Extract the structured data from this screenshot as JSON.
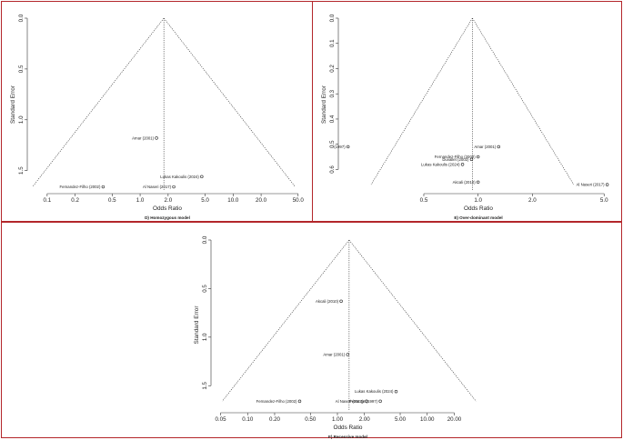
{
  "colors": {
    "border": "#b3262a",
    "ink": "#222222"
  },
  "chart_data": [
    {
      "id": "panel-d",
      "type": "scatter",
      "caption": "D) Homozygous model",
      "xlabel": "Odds Ratio",
      "ylabel": "Standard Error",
      "x_scale": "log",
      "xlim": [
        0.07,
        55
      ],
      "ylim": [
        1.7,
        0
      ],
      "x_ticks": [
        0.1,
        0.2,
        0.5,
        1.0,
        2.0,
        5.0,
        10.0,
        20.0,
        50.0
      ],
      "x_tick_labels": [
        "0.1",
        "0.2",
        "0.5",
        "1.0",
        "2.0",
        "5.0",
        "10.0",
        "20.0",
        "50.0"
      ],
      "y_ticks": [
        0,
        0.5,
        1.0,
        1.5
      ],
      "y_tick_labels": [
        "0.0",
        "0.5",
        "1.0",
        "1.5"
      ],
      "pooled_or": 1.8,
      "funnel_se_max": 1.66,
      "points": [
        {
          "label": "Amar (2001)",
          "x": 1.5,
          "y": 1.18
        },
        {
          "label": "Lukas Kakoulis (2024)",
          "x": 4.6,
          "y": 1.56
        },
        {
          "label": "Fernandez-Filho (2002)",
          "x": 0.4,
          "y": 1.66
        },
        {
          "label": "Al Naseri (2017)",
          "x": 2.3,
          "y": 1.66
        }
      ]
    },
    {
      "id": "panel-e",
      "type": "scatter",
      "caption": "E) Over-dominant model",
      "xlabel": "Odds Ratio",
      "ylabel": "Standard Error",
      "x_scale": "log",
      "xlim": [
        0.18,
        5.6
      ],
      "ylim": [
        0.685,
        0
      ],
      "x_ticks": [
        0.5,
        1.0,
        2.0,
        5.0
      ],
      "x_tick_labels": [
        "0.5",
        "1.0",
        "2.0",
        "5.0"
      ],
      "y_ticks": [
        0,
        0.1,
        0.2,
        0.3,
        0.4,
        0.5,
        0.6
      ],
      "y_tick_labels": [
        "0.0",
        "0.1",
        "0.2",
        "0.3",
        "0.4",
        "0.5",
        "0.6"
      ],
      "pooled_or": 0.93,
      "funnel_se_max": 0.66,
      "points": [
        {
          "label": "(1997)",
          "x": 0.19,
          "y": 0.51
        },
        {
          "label": "Amar (2001)",
          "x": 1.3,
          "y": 0.51
        },
        {
          "label": "Fernandez-Filho (2002)",
          "x": 1.0,
          "y": 0.55
        },
        {
          "label": "Duvallet (2002)",
          "x": 0.92,
          "y": 0.56
        },
        {
          "label": "Lukas Kakoulis (2024)",
          "x": 0.82,
          "y": 0.58
        },
        {
          "label": "Akcali (2010)",
          "x": 1.0,
          "y": 0.65
        },
        {
          "label": "Al Naseri (2017)",
          "x": 5.2,
          "y": 0.66
        }
      ]
    },
    {
      "id": "panel-f",
      "type": "scatter",
      "caption": "F) Recessive model",
      "xlabel": "Odds Ratio",
      "ylabel": "Standard Error",
      "x_scale": "log",
      "xlim": [
        0.045,
        38
      ],
      "ylim": [
        1.75,
        0
      ],
      "x_ticks": [
        0.05,
        0.1,
        0.2,
        0.5,
        1.0,
        2.0,
        5.0,
        10.0,
        20.0
      ],
      "x_tick_labels": [
        "0.05",
        "0.10",
        "0.20",
        "0.50",
        "1.00",
        "2.00",
        "5.00",
        "10.00",
        "20.00"
      ],
      "y_ticks": [
        0,
        0.5,
        1.0,
        1.5
      ],
      "y_tick_labels": [
        "0.0",
        "0.5",
        "1.0",
        "1.5"
      ],
      "pooled_or": 1.35,
      "funnel_se_max": 1.66,
      "points": [
        {
          "label": "Akcali (2010)",
          "x": 1.1,
          "y": 0.63
        },
        {
          "label": "Amar (2001)",
          "x": 1.3,
          "y": 1.18
        },
        {
          "label": "Lukas Kakoulis (2024)",
          "x": 4.5,
          "y": 1.56
        },
        {
          "label": "Fernandez-Filho (2002)",
          "x": 0.38,
          "y": 1.66
        },
        {
          "label": "Al Naseri (2017)",
          "x": 2.1,
          "y": 1.66
        },
        {
          "label": "Petrange (1997)",
          "x": 3.0,
          "y": 1.66
        }
      ]
    }
  ]
}
